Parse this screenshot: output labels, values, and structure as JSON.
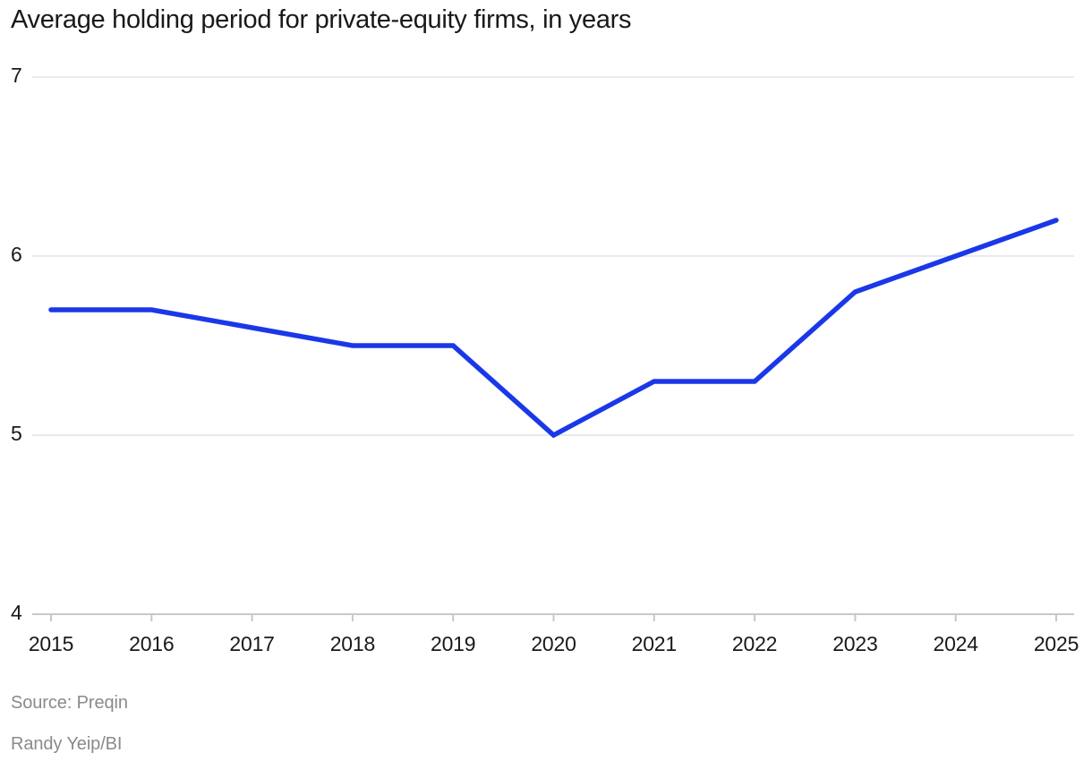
{
  "title": "Average holding period for private-equity firms, in years",
  "footer": {
    "source": "Source: Preqin",
    "byline": "Randy Yeip/BI"
  },
  "chart_data": {
    "type": "line",
    "title": "Average holding period for private-equity firms, in years",
    "x": [
      2015,
      2016,
      2017,
      2018,
      2019,
      2020,
      2021,
      2022,
      2023,
      2024,
      2025
    ],
    "series": [
      {
        "name": "Average holding period (years)",
        "values": [
          5.7,
          5.7,
          5.6,
          5.5,
          5.5,
          5.0,
          5.3,
          5.3,
          5.8,
          6.0,
          6.2
        ]
      }
    ],
    "xlabel": "",
    "ylabel": "",
    "ylim": [
      4,
      7
    ],
    "yticks": [
      4,
      5,
      6,
      7
    ],
    "grid": true,
    "legend": "none",
    "colors": {
      "line": "#1a38e8",
      "gridline": "#eaeaea",
      "axis_line": "#c8c8c8",
      "tick_text": "#19191b",
      "muted_text": "#8a8a8e"
    }
  }
}
